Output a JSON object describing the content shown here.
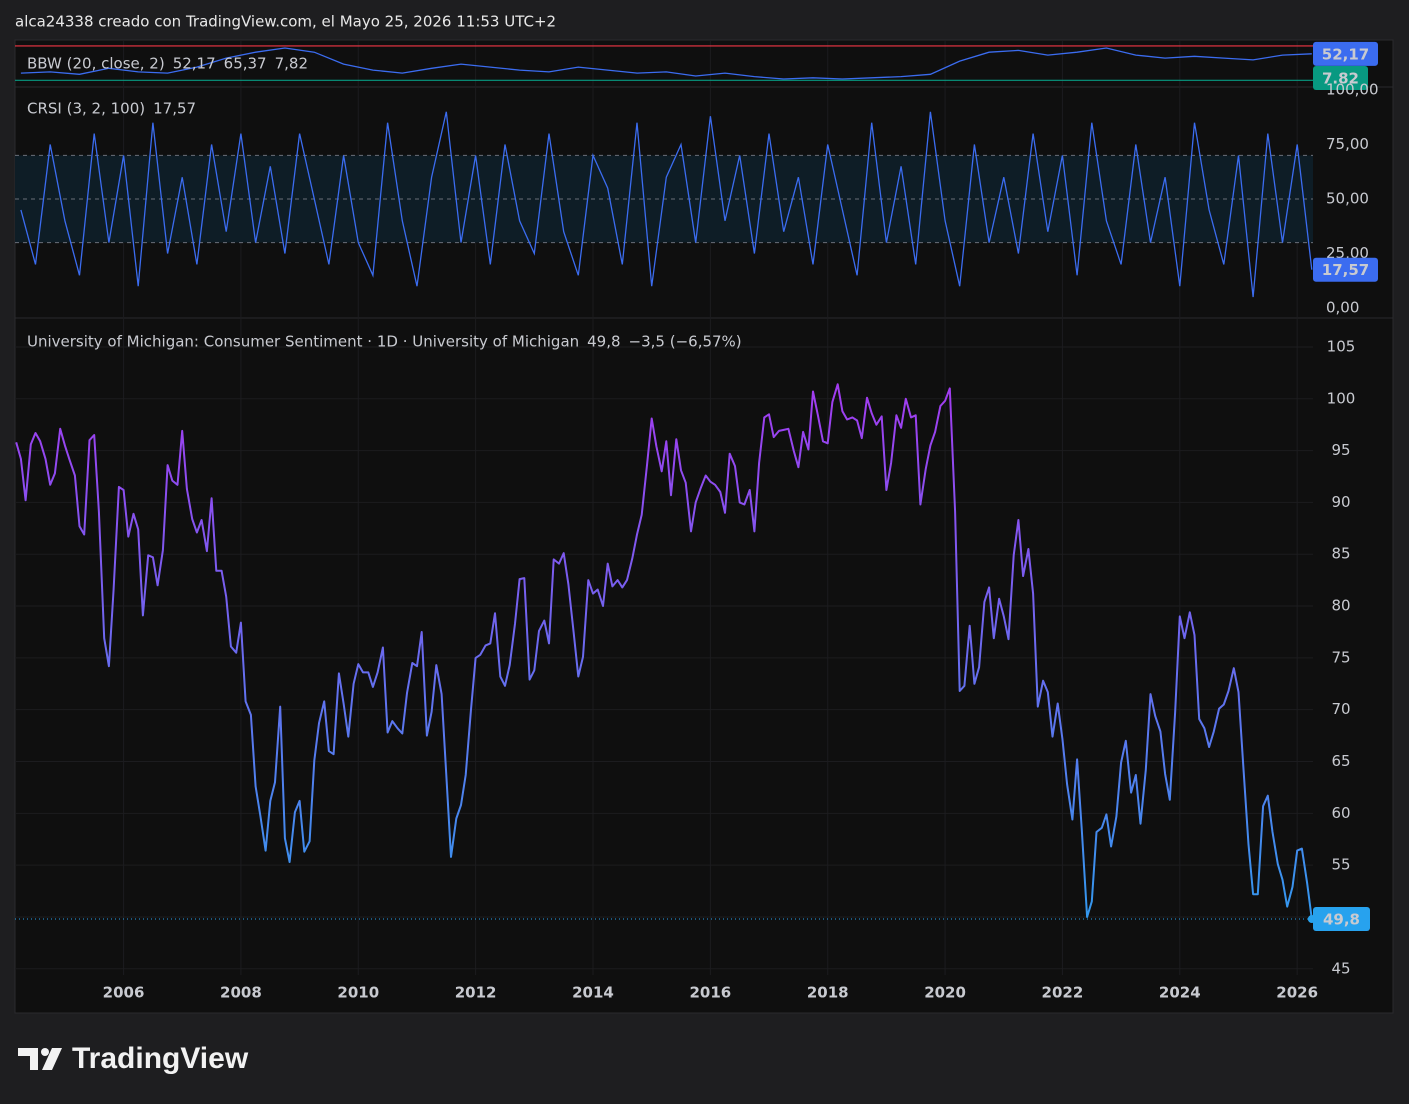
{
  "page": {
    "header": "alca24338 creado con TradingView.com, el Mayo 25, 2026 11:53 UTC+2",
    "brand": "TradingView"
  },
  "chart_data": [
    {
      "type": "line",
      "title": "BBW (20, close, 2)",
      "ylim": [
        0,
        72
      ],
      "series": [
        {
          "color": "#3b6cf0",
          "last": {
            "value": 52.17,
            "label": "52,17"
          },
          "x": [
            2004.25,
            2004.75,
            2005.25,
            2005.75,
            2006.25,
            2006.75,
            2007.25,
            2007.75,
            2008.25,
            2008.75,
            2009.25,
            2009.75,
            2010.25,
            2010.75,
            2011.25,
            2011.75,
            2012.25,
            2012.75,
            2013.25,
            2013.75,
            2014.25,
            2014.75,
            2015.25,
            2015.75,
            2016.25,
            2016.75,
            2017.25,
            2017.75,
            2018.25,
            2018.75,
            2019.25,
            2019.75,
            2020.25,
            2020.75,
            2021.25,
            2021.75,
            2022.25,
            2022.75,
            2023.25,
            2023.75,
            2024.25,
            2024.75,
            2025.25,
            2025.75,
            2026.25
          ],
          "values": [
            20,
            22,
            18,
            28,
            22,
            20,
            30,
            45,
            55,
            62,
            55,
            35,
            25,
            20,
            28,
            35,
            30,
            25,
            22,
            30,
            25,
            20,
            22,
            15,
            20,
            14,
            10,
            12,
            10,
            12,
            14,
            18,
            40,
            55,
            58,
            50,
            55,
            62,
            50,
            45,
            48,
            45,
            42,
            50,
            52.17
          ]
        },
        {
          "color": "#f23645",
          "values": [
            65.37
          ],
          "value_labels": [
            "65,37"
          ]
        },
        {
          "color": "#089981",
          "values": [
            7.82
          ],
          "value_labels": [
            "7,82"
          ],
          "axis_label": "7.82"
        }
      ]
    },
    {
      "type": "line",
      "title": "CRSI (3, 2, 100)",
      "ylim": [
        0,
        100
      ],
      "yticks": [
        {
          "value": 100,
          "label": "100,00"
        },
        {
          "value": 75,
          "label": "75,00"
        },
        {
          "value": 50,
          "label": "50,00"
        },
        {
          "value": 25,
          "label": "25,00"
        },
        {
          "value": 0,
          "label": "0,00"
        }
      ],
      "levels": [
        70,
        50,
        30
      ],
      "band_color": "#0e1d26",
      "series": [
        {
          "color": "#3b6cf0",
          "last": {
            "value": 17.57,
            "label": "17,57"
          },
          "x": [
            2004.25,
            2004.5,
            2004.75,
            2005,
            2005.25,
            2005.5,
            2005.75,
            2006,
            2006.25,
            2006.5,
            2006.75,
            2007,
            2007.25,
            2007.5,
            2007.75,
            2008,
            2008.25,
            2008.5,
            2008.75,
            2009,
            2009.25,
            2009.5,
            2009.75,
            2010,
            2010.25,
            2010.5,
            2010.75,
            2011,
            2011.25,
            2011.5,
            2011.75,
            2012,
            2012.25,
            2012.5,
            2012.75,
            2013,
            2013.25,
            2013.5,
            2013.75,
            2014,
            2014.25,
            2014.5,
            2014.75,
            2015,
            2015.25,
            2015.5,
            2015.75,
            2016,
            2016.25,
            2016.5,
            2016.75,
            2017,
            2017.25,
            2017.5,
            2017.75,
            2018,
            2018.25,
            2018.5,
            2018.75,
            2019,
            2019.25,
            2019.5,
            2019.75,
            2020,
            2020.25,
            2020.5,
            2020.75,
            2021,
            2021.25,
            2021.5,
            2021.75,
            2022,
            2022.25,
            2022.5,
            2022.75,
            2023,
            2023.25,
            2023.5,
            2023.75,
            2024,
            2024.25,
            2024.5,
            2024.75,
            2025,
            2025.25,
            2025.5,
            2025.75,
            2026,
            2026.25
          ],
          "values": [
            45,
            20,
            75,
            40,
            15,
            80,
            30,
            70,
            10,
            85,
            25,
            60,
            20,
            75,
            35,
            80,
            30,
            65,
            25,
            80,
            50,
            20,
            70,
            30,
            15,
            85,
            40,
            10,
            60,
            90,
            30,
            70,
            20,
            75,
            40,
            25,
            80,
            35,
            15,
            70,
            55,
            20,
            85,
            10,
            60,
            75,
            30,
            88,
            40,
            70,
            25,
            80,
            35,
            60,
            20,
            75,
            45,
            15,
            85,
            30,
            65,
            20,
            90,
            40,
            10,
            75,
            30,
            60,
            25,
            80,
            35,
            70,
            15,
            85,
            40,
            20,
            75,
            30,
            60,
            10,
            85,
            45,
            20,
            70,
            5,
            80,
            30,
            75,
            17.57
          ]
        }
      ]
    },
    {
      "type": "line",
      "title": "University of Michigan: Consumer Sentiment · 1D · University of Michigan",
      "last": {
        "value": 49.8,
        "label": "49,8"
      },
      "change": "−3,5 (−6,57%)",
      "colors": [
        "#b030f0",
        "#27a2ee"
      ],
      "xlim": [
        2004.15,
        2026.27
      ],
      "xticks": [
        2006,
        2008,
        2010,
        2012,
        2014,
        2016,
        2018,
        2020,
        2022,
        2024,
        2026
      ],
      "ylim": [
        44.4,
        107.6
      ],
      "yticks": [
        45,
        50,
        55,
        60,
        65,
        70,
        75,
        80,
        85,
        90,
        95,
        100,
        105
      ],
      "grid": true,
      "x": [
        2004.17,
        2004.25,
        2004.33,
        2004.42,
        2004.5,
        2004.58,
        2004.67,
        2004.75,
        2004.83,
        2004.92,
        2005,
        2005.08,
        2005.17,
        2005.25,
        2005.33,
        2005.42,
        2005.5,
        2005.58,
        2005.67,
        2005.75,
        2005.83,
        2005.92,
        2006,
        2006.08,
        2006.17,
        2006.25,
        2006.33,
        2006.42,
        2006.5,
        2006.58,
        2006.67,
        2006.75,
        2006.83,
        2006.92,
        2007,
        2007.08,
        2007.17,
        2007.25,
        2007.33,
        2007.42,
        2007.5,
        2007.58,
        2007.67,
        2007.75,
        2007.83,
        2007.92,
        2008,
        2008.08,
        2008.17,
        2008.25,
        2008.33,
        2008.42,
        2008.5,
        2008.58,
        2008.67,
        2008.75,
        2008.83,
        2008.92,
        2009,
        2009.08,
        2009.17,
        2009.25,
        2009.33,
        2009.42,
        2009.5,
        2009.58,
        2009.67,
        2009.75,
        2009.83,
        2009.92,
        2010,
        2010.08,
        2010.17,
        2010.25,
        2010.33,
        2010.42,
        2010.5,
        2010.58,
        2010.67,
        2010.75,
        2010.83,
        2010.92,
        2011,
        2011.08,
        2011.17,
        2011.25,
        2011.33,
        2011.42,
        2011.5,
        2011.58,
        2011.67,
        2011.75,
        2011.83,
        2011.92,
        2012,
        2012.08,
        2012.17,
        2012.25,
        2012.33,
        2012.42,
        2012.5,
        2012.58,
        2012.67,
        2012.75,
        2012.83,
        2012.92,
        2013,
        2013.08,
        2013.17,
        2013.25,
        2013.33,
        2013.42,
        2013.5,
        2013.58,
        2013.67,
        2013.75,
        2013.83,
        2013.92,
        2014,
        2014.08,
        2014.17,
        2014.25,
        2014.33,
        2014.42,
        2014.5,
        2014.58,
        2014.67,
        2014.75,
        2014.83,
        2014.92,
        2015,
        2015.08,
        2015.17,
        2015.25,
        2015.33,
        2015.42,
        2015.5,
        2015.58,
        2015.67,
        2015.75,
        2015.83,
        2015.92,
        2016,
        2016.08,
        2016.17,
        2016.25,
        2016.33,
        2016.42,
        2016.5,
        2016.58,
        2016.67,
        2016.75,
        2016.83,
        2016.92,
        2017,
        2017.08,
        2017.17,
        2017.25,
        2017.33,
        2017.42,
        2017.5,
        2017.58,
        2017.67,
        2017.75,
        2017.83,
        2017.92,
        2018,
        2018.08,
        2018.17,
        2018.25,
        2018.33,
        2018.42,
        2018.5,
        2018.58,
        2018.67,
        2018.75,
        2018.83,
        2018.92,
        2019,
        2019.08,
        2019.17,
        2019.25,
        2019.33,
        2019.42,
        2019.5,
        2019.58,
        2019.67,
        2019.75,
        2019.83,
        2019.92,
        2020,
        2020.08,
        2020.17,
        2020.25,
        2020.33,
        2020.42,
        2020.5,
        2020.58,
        2020.67,
        2020.75,
        2020.83,
        2020.92,
        2021,
        2021.08,
        2021.17,
        2021.25,
        2021.33,
        2021.42,
        2021.5,
        2021.58,
        2021.67,
        2021.75,
        2021.83,
        2021.92,
        2022,
        2022.08,
        2022.17,
        2022.25,
        2022.33,
        2022.42,
        2022.5,
        2022.58,
        2022.67,
        2022.75,
        2022.83,
        2022.92,
        2023,
        2023.08,
        2023.17,
        2023.25,
        2023.33,
        2023.42,
        2023.5,
        2023.58,
        2023.67,
        2023.75,
        2023.83,
        2023.92,
        2024,
        2024.08,
        2024.17,
        2024.25,
        2024.33,
        2024.42,
        2024.5,
        2024.58,
        2024.67,
        2024.75,
        2024.83,
        2024.92,
        2025,
        2025.08,
        2025.17,
        2025.25,
        2025.33,
        2025.42,
        2025.5,
        2025.58,
        2025.67,
        2025.75,
        2025.83,
        2025.92,
        2026,
        2026.08,
        2026.17,
        2026.25
      ],
      "values": [
        95.8,
        94.2,
        90.2,
        95.6,
        96.7,
        95.9,
        94.2,
        91.7,
        92.8,
        97.1,
        95.5,
        94.1,
        92.6,
        87.7,
        86.9,
        96.0,
        96.5,
        89.1,
        76.9,
        74.2,
        81.6,
        91.5,
        91.2,
        86.7,
        88.9,
        87.4,
        79.1,
        84.9,
        84.7,
        82.0,
        85.4,
        93.6,
        92.1,
        91.7,
        96.9,
        91.3,
        88.4,
        87.1,
        88.3,
        85.3,
        90.4,
        83.4,
        83.4,
        80.9,
        76.1,
        75.5,
        78.4,
        70.8,
        69.5,
        62.6,
        59.8,
        56.4,
        61.2,
        63.0,
        70.3,
        57.6,
        55.3,
        60.1,
        61.2,
        56.3,
        57.3,
        65.1,
        68.7,
        70.8,
        66.0,
        65.7,
        73.5,
        70.6,
        67.4,
        72.5,
        74.4,
        73.6,
        73.6,
        72.2,
        73.6,
        76.0,
        67.8,
        68.9,
        68.2,
        67.7,
        71.6,
        74.5,
        74.2,
        77.5,
        67.5,
        69.8,
        74.3,
        71.5,
        63.7,
        55.8,
        59.5,
        60.8,
        63.7,
        69.9,
        75.0,
        75.3,
        76.2,
        76.4,
        79.3,
        73.2,
        72.3,
        74.3,
        78.3,
        82.6,
        82.7,
        72.9,
        73.8,
        77.6,
        78.6,
        76.4,
        84.5,
        84.1,
        85.1,
        82.1,
        77.5,
        73.2,
        75.1,
        82.5,
        81.2,
        81.6,
        80.0,
        84.1,
        81.9,
        82.5,
        81.8,
        82.5,
        84.6,
        86.9,
        88.8,
        93.6,
        98.1,
        95.4,
        93.0,
        95.9,
        90.7,
        96.1,
        93.1,
        91.9,
        87.2,
        90.0,
        91.3,
        92.6,
        92.0,
        91.7,
        91.0,
        89.0,
        94.7,
        93.5,
        90.0,
        89.8,
        91.2,
        87.2,
        93.8,
        98.2,
        98.5,
        96.3,
        96.9,
        97.0,
        97.1,
        95.0,
        93.4,
        96.8,
        95.1,
        100.7,
        98.5,
        95.9,
        95.7,
        99.7,
        101.4,
        98.8,
        98.0,
        98.2,
        97.9,
        96.2,
        100.1,
        98.6,
        97.5,
        98.3,
        91.2,
        93.8,
        98.4,
        97.2,
        100.0,
        98.2,
        98.4,
        89.8,
        93.2,
        95.5,
        96.8,
        99.3,
        99.8,
        101.0,
        89.1,
        71.8,
        72.3,
        78.1,
        72.5,
        74.1,
        80.4,
        81.8,
        76.9,
        80.7,
        79.0,
        76.8,
        84.9,
        88.3,
        82.9,
        85.5,
        81.2,
        70.3,
        72.8,
        71.7,
        67.4,
        70.6,
        67.2,
        62.8,
        59.4,
        65.2,
        58.4,
        50.0,
        51.5,
        58.2,
        58.6,
        59.9,
        56.8,
        59.7,
        64.9,
        67.0,
        62.0,
        63.7,
        59.0,
        64.2,
        71.5,
        69.4,
        67.9,
        63.8,
        61.3,
        69.7,
        79.0,
        76.9,
        79.4,
        77.2,
        69.1,
        68.2,
        66.4,
        67.9,
        70.1,
        70.5,
        71.8,
        74.0,
        71.7,
        64.7,
        57.0,
        52.2,
        52.2,
        60.7,
        61.7,
        58.2,
        55.1,
        53.6,
        51.0,
        52.9,
        56.4,
        56.6,
        53.3,
        49.8
      ]
    }
  ]
}
